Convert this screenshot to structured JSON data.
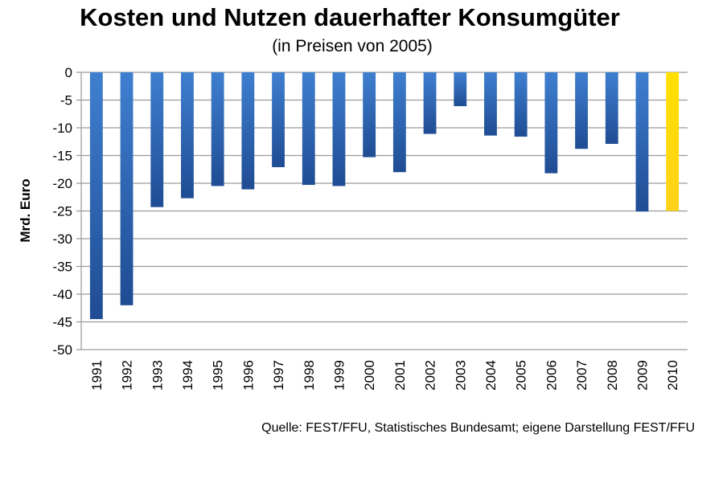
{
  "chart_data": {
    "type": "bar",
    "title": "Kosten und Nutzen dauerhafter Konsumgüter",
    "subtitle": "(in Preisen von 2005)",
    "ylabel": "Mrd. Euro",
    "xlabel": "",
    "source": "Quelle: FEST/FFU, Statistisches Bundesamt; eigene Darstellung FEST/FFU",
    "categories": [
      "1991",
      "1992",
      "1993",
      "1994",
      "1995",
      "1996",
      "1997",
      "1998",
      "1999",
      "2000",
      "2001",
      "2002",
      "2003",
      "2004",
      "2005",
      "2006",
      "2007",
      "2008",
      "2009",
      "2010"
    ],
    "values": [
      -44.5,
      -42,
      -24.3,
      -22.7,
      -20.5,
      -21.1,
      -17.1,
      -20.3,
      -20.5,
      -15.3,
      -18,
      -11.1,
      -6.1,
      -11.4,
      -11.6,
      -18.2,
      -13.8,
      -12.9,
      -25.1,
      -25
    ],
    "highlight_index": 19,
    "ylim": [
      -50,
      0
    ],
    "yticks": [
      0,
      -5,
      -10,
      -15,
      -20,
      -25,
      -30,
      -35,
      -40,
      -45,
      -50
    ],
    "grid": true,
    "colors": {
      "bar_top": "#3f7fd0",
      "bar_bottom": "#1f4c93",
      "highlight_top": "#ffe000",
      "highlight_bottom": "#ffd21a",
      "grid": "#9a9a9a"
    }
  }
}
